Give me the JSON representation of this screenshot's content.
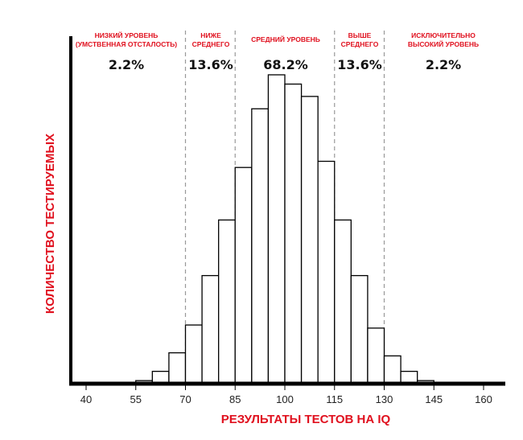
{
  "chart_data": {
    "type": "bar",
    "xlabel": "РЕЗУЛЬТАТЫ ТЕСТОВ НА IQ",
    "ylabel": "КОЛИЧЕСТВО ТЕСТИРУЕМЫХ",
    "xlim": [
      36,
      166
    ],
    "ylim": [
      0,
      112.5
    ],
    "x_ticks": [
      40,
      55,
      70,
      85,
      100,
      115,
      130,
      145,
      160
    ],
    "bin_width": 5,
    "bin_starts": [
      55,
      60,
      65,
      70,
      75,
      80,
      85,
      90,
      95,
      100,
      105,
      110,
      115,
      120,
      125,
      130,
      135,
      140
    ],
    "values": [
      1,
      4,
      10,
      19,
      35,
      53,
      70,
      89,
      100,
      97,
      93,
      72,
      53,
      35,
      18,
      9,
      4,
      1
    ],
    "grid": false,
    "bar_fill": "#ffffff",
    "bar_stroke": "#000000",
    "label_color": "#e0101e",
    "divider_values": [
      70,
      85,
      115,
      130
    ],
    "regions": [
      {
        "lines": [
          "НИЗКИЙ УРОВЕНЬ",
          "(УМСТВЕННАЯ ОТСТАЛОСТЬ)"
        ],
        "percent": "2.2%"
      },
      {
        "lines": [
          "НИЖЕ",
          "СРЕДНЕГО"
        ],
        "percent": "13.6%"
      },
      {
        "lines": [
          "СРЕДНИЙ УРОВЕНЬ"
        ],
        "percent": "68.2%"
      },
      {
        "lines": [
          "ВЫШЕ",
          "СРЕДНЕГО"
        ],
        "percent": "13.6%"
      },
      {
        "lines": [
          "ИСКЛЮЧИТЕЛЬНО",
          "ВЫСОКИЙ УРОВЕНЬ"
        ],
        "percent": "2.2%"
      }
    ]
  }
}
